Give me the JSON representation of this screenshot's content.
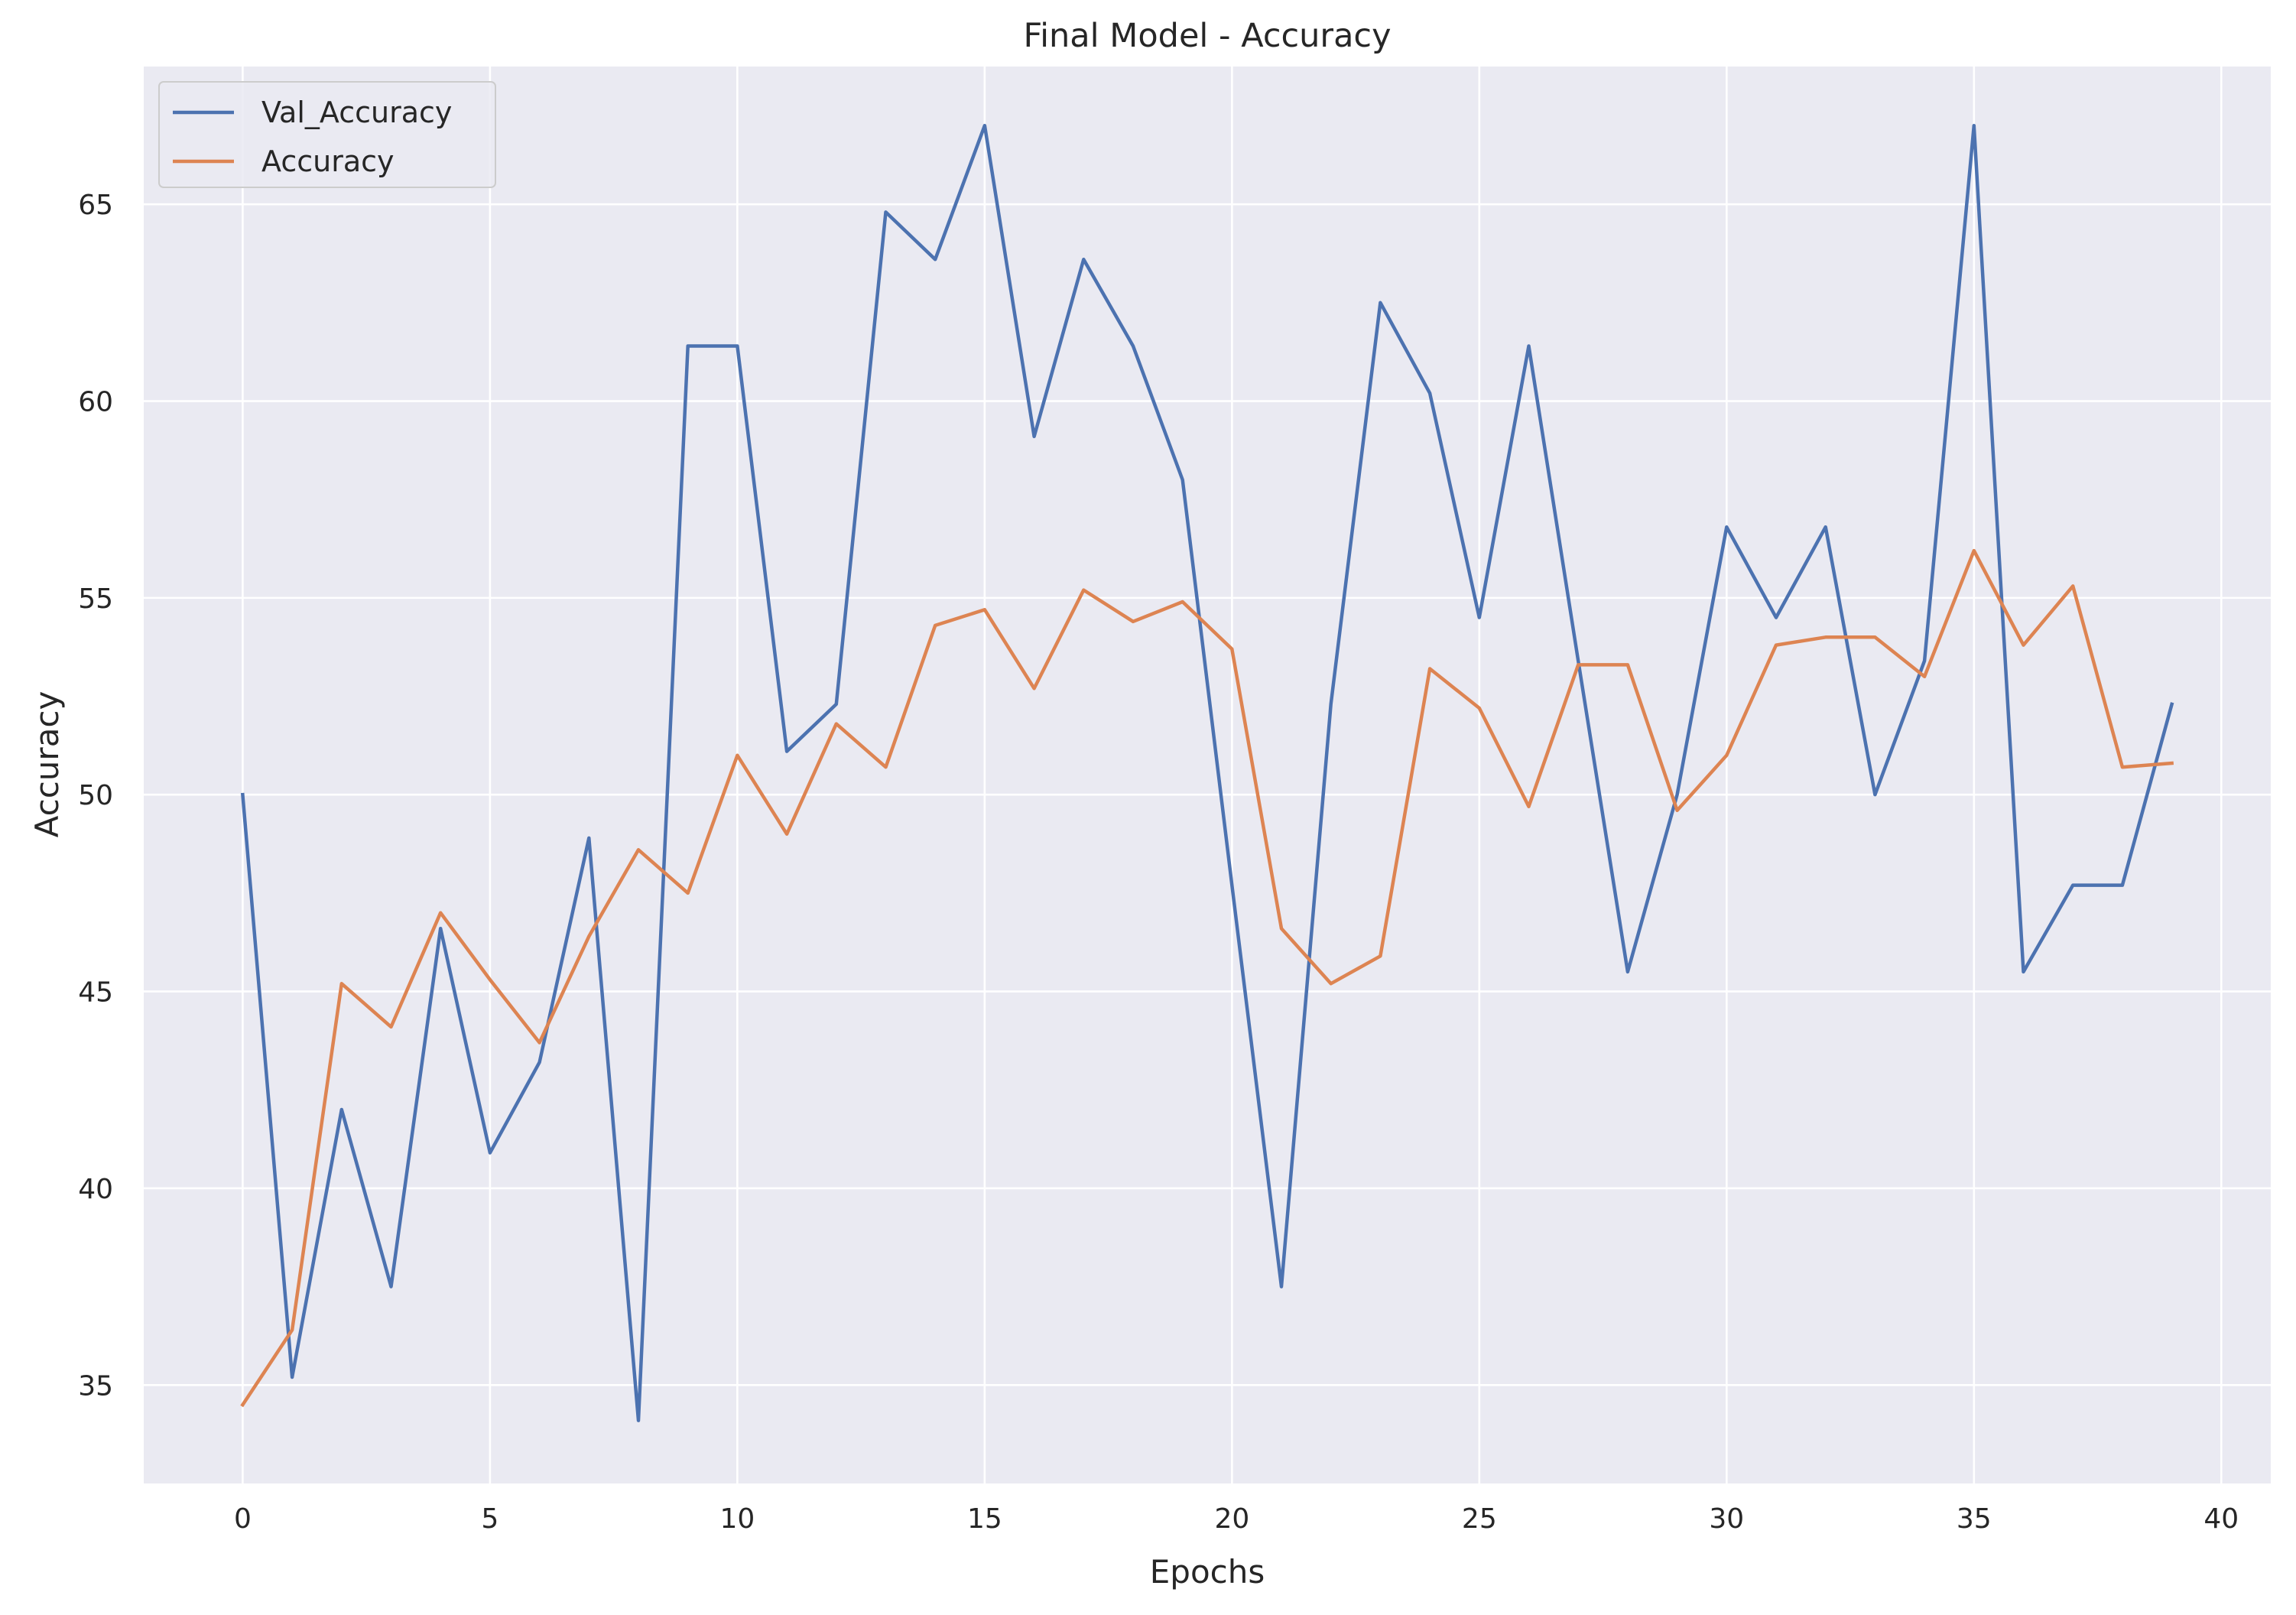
{
  "chart_data": {
    "type": "line",
    "title": "Final Model - Accuracy",
    "xlabel": "Epochs",
    "ylabel": "Accuracy",
    "xlim": [
      -2.0,
      41.0
    ],
    "ylim": [
      32.5,
      68.5
    ],
    "xticks": [
      0,
      5,
      10,
      15,
      20,
      25,
      30,
      35,
      40
    ],
    "yticks": [
      35,
      40,
      45,
      50,
      55,
      60,
      65
    ],
    "grid": true,
    "legend_position": "top-left",
    "background_color": "#eaeaf2",
    "grid_color": "#ffffff",
    "x": [
      0,
      1,
      2,
      3,
      4,
      5,
      6,
      7,
      8,
      9,
      10,
      11,
      12,
      13,
      14,
      15,
      16,
      17,
      18,
      19,
      20,
      21,
      22,
      23,
      24,
      25,
      26,
      27,
      28,
      29,
      30,
      31,
      32,
      33,
      34,
      35,
      36,
      37,
      38,
      39
    ],
    "series": [
      {
        "name": "Val_Accuracy",
        "color": "#4c72b0",
        "values": [
          50.0,
          35.2,
          42.0,
          37.5,
          46.6,
          40.9,
          43.2,
          48.9,
          34.1,
          61.4,
          61.4,
          51.1,
          52.3,
          64.8,
          63.6,
          67.0,
          59.1,
          63.6,
          61.4,
          58.0,
          47.7,
          37.5,
          52.3,
          62.5,
          60.2,
          54.5,
          61.4,
          53.4,
          45.5,
          50.0,
          56.8,
          54.5,
          56.8,
          50.0,
          53.4,
          67.0,
          45.5,
          47.7,
          47.7,
          52.3
        ]
      },
      {
        "name": "Accuracy",
        "color": "#dd8452",
        "values": [
          34.5,
          36.4,
          45.2,
          44.1,
          47.0,
          45.3,
          43.7,
          46.4,
          48.6,
          47.5,
          51.0,
          49.0,
          51.8,
          50.7,
          54.3,
          54.7,
          52.7,
          55.2,
          54.4,
          54.9,
          53.7,
          46.6,
          45.2,
          45.9,
          53.2,
          52.2,
          49.7,
          53.3,
          53.3,
          49.6,
          51.0,
          53.8,
          54.0,
          54.0,
          53.0,
          56.2,
          53.8,
          55.3,
          50.7,
          50.8
        ]
      }
    ]
  }
}
